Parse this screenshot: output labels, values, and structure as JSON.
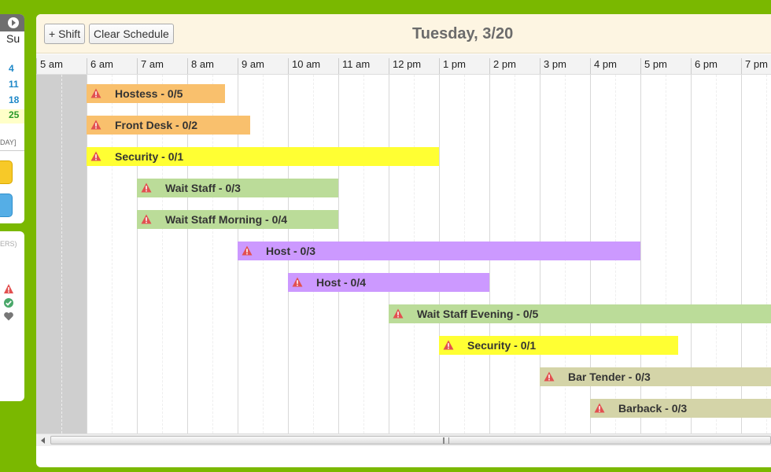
{
  "mini_calendar": {
    "day_of_week": "Su",
    "days": [
      {
        "label": "4",
        "today": false
      },
      {
        "label": "11",
        "today": false
      },
      {
        "label": "18",
        "today": false
      },
      {
        "label": "25",
        "today": true
      }
    ],
    "today_label": "DAY]"
  },
  "legend": {
    "label": "ERS)",
    "icons": [
      "warning-icon",
      "check-circle-icon",
      "heart-icon"
    ]
  },
  "toolbar": {
    "add_shift_label": "+ Shift",
    "clear_schedule_label": "Clear Schedule",
    "date_title": "Tuesday, 3/20"
  },
  "timeline": {
    "hours": [
      "5 am",
      "6 am",
      "7 am",
      "8 am",
      "9 am",
      "10 am",
      "11 am",
      "12 pm",
      "1 pm",
      "2 pm",
      "3 pm",
      "4 pm",
      "5 pm",
      "6 pm",
      "7 pm"
    ],
    "first_hour": 5
  },
  "colors": {
    "orange": "#f9c06d",
    "yellow": "#ffff33",
    "green": "#bbdc99",
    "purple": "#cc99ff",
    "tan": "#d4d4a8",
    "warning": "#e25050"
  },
  "shifts": [
    {
      "label": "Hostess - 0/5",
      "start": 6,
      "end": 8.75,
      "color": "orange"
    },
    {
      "label": "Front Desk - 0/2",
      "start": 6,
      "end": 9.25,
      "color": "orange"
    },
    {
      "label": "Security - 0/1",
      "start": 6,
      "end": 13,
      "color": "yellow"
    },
    {
      "label": "Wait Staff - 0/3",
      "start": 7,
      "end": 11,
      "color": "green"
    },
    {
      "label": "Wait Staff Morning - 0/4",
      "start": 7,
      "end": 11,
      "color": "green"
    },
    {
      "label": "Host - 0/3",
      "start": 9,
      "end": 17,
      "color": "purple"
    },
    {
      "label": "Host - 0/4",
      "start": 10,
      "end": 14,
      "color": "purple"
    },
    {
      "label": "Wait Staff Evening - 0/5",
      "start": 12,
      "end": 20,
      "color": "green"
    },
    {
      "label": "Security - 0/1",
      "start": 13,
      "end": 17.75,
      "color": "yellow"
    },
    {
      "label": "Bar Tender - 0/3",
      "start": 15,
      "end": 20,
      "color": "tan"
    },
    {
      "label": "Barback - 0/3",
      "start": 16,
      "end": 20,
      "color": "tan"
    }
  ]
}
